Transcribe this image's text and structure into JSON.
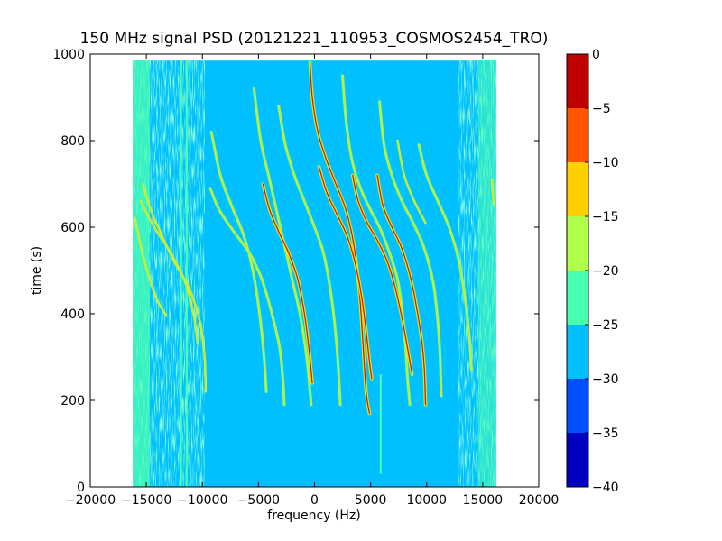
{
  "chart_data": {
    "type": "heatmap",
    "title": "150 MHz signal PSD (20121221_110953_COSMOS2454_TRO)",
    "xlabel": "frequency (Hz)",
    "ylabel": "time (s)",
    "xlim": [
      -20000,
      20000
    ],
    "ylim": [
      0,
      1000
    ],
    "x_ticks": [
      -20000,
      -15000,
      -10000,
      -5000,
      0,
      5000,
      10000,
      15000,
      20000
    ],
    "x_tick_labels": [
      "−20000",
      "−15000",
      "−10000",
      "−5000",
      "0",
      "5000",
      "10000",
      "15000",
      "20000"
    ],
    "y_ticks": [
      0,
      200,
      400,
      600,
      800,
      1000
    ],
    "y_tick_labels": [
      "0",
      "200",
      "400",
      "600",
      "800",
      "1000"
    ],
    "data_extent": {
      "freq_min": -16200,
      "freq_max": 16200,
      "time_min": 0,
      "time_max": 985
    },
    "colorbar": {
      "levels": [
        0,
        -5,
        -10,
        -15,
        -20,
        -25,
        -30,
        -35,
        -40
      ],
      "level_labels": [
        "0",
        "−5",
        "−10",
        "−15",
        "−20",
        "−25",
        "−30",
        "−35",
        "−40"
      ],
      "bands": [
        {
          "from": -5,
          "to": 0,
          "color": "#c00000"
        },
        {
          "from": -10,
          "to": -5,
          "color": "#ff5500"
        },
        {
          "from": -15,
          "to": -10,
          "color": "#ffd000"
        },
        {
          "from": -20,
          "to": -15,
          "color": "#b0ff48"
        },
        {
          "from": -25,
          "to": -20,
          "color": "#48ffb0"
        },
        {
          "from": -30,
          "to": -25,
          "color": "#00c0ff"
        },
        {
          "from": -35,
          "to": -30,
          "color": "#0050ff"
        },
        {
          "from": -40,
          "to": -35,
          "color": "#0000c0"
        }
      ]
    },
    "background_level_color": "#00c0ff",
    "edge_noise_color": "#48ffb0",
    "vertical_lines": [
      {
        "freq": -11900,
        "t0": 0,
        "t1": 985
      },
      {
        "freq": -11400,
        "t0": 0,
        "t1": 985
      },
      {
        "freq": 5900,
        "t0": 30,
        "t1": 260
      }
    ],
    "traces": [
      {
        "id": "t1",
        "strength": "weak",
        "points": [
          [
            -16000,
            620
          ],
          [
            -15400,
            545
          ],
          [
            -14800,
            490
          ],
          [
            -14000,
            430
          ],
          [
            -13200,
            395
          ]
        ]
      },
      {
        "id": "t2",
        "strength": "weak",
        "points": [
          [
            -15300,
            700
          ],
          [
            -14600,
            640
          ],
          [
            -13600,
            580
          ],
          [
            -12500,
            520
          ],
          [
            -11200,
            460
          ],
          [
            -10200,
            380
          ],
          [
            -9800,
            300
          ],
          [
            -9700,
            220
          ]
        ]
      },
      {
        "id": "t3",
        "strength": "weak",
        "points": [
          [
            -15500,
            660
          ],
          [
            -14300,
            600
          ],
          [
            -12800,
            540
          ],
          [
            -11500,
            470
          ],
          [
            -10800,
            400
          ],
          [
            -10400,
            330
          ]
        ]
      },
      {
        "id": "t4",
        "strength": "medium",
        "points": [
          [
            -9200,
            820
          ],
          [
            -8400,
            720
          ],
          [
            -7400,
            650
          ],
          [
            -6300,
            580
          ],
          [
            -5500,
            500
          ],
          [
            -4900,
            400
          ],
          [
            -4500,
            300
          ],
          [
            -4300,
            220
          ]
        ]
      },
      {
        "id": "t5",
        "strength": "medium",
        "points": [
          [
            -9300,
            690
          ],
          [
            -8500,
            640
          ],
          [
            -7200,
            590
          ],
          [
            -5800,
            540
          ],
          [
            -4700,
            480
          ],
          [
            -3800,
            400
          ],
          [
            -3100,
            320
          ],
          [
            -2800,
            240
          ],
          [
            -2700,
            190
          ]
        ]
      },
      {
        "id": "t6",
        "strength": "medium",
        "points": [
          [
            -5400,
            920
          ],
          [
            -4800,
            800
          ],
          [
            -4100,
            720
          ],
          [
            -3400,
            640
          ],
          [
            -2700,
            560
          ],
          [
            -2000,
            480
          ],
          [
            -1300,
            400
          ],
          [
            -700,
            300
          ],
          [
            -300,
            190
          ]
        ]
      },
      {
        "id": "t7",
        "strength": "strong",
        "points": [
          [
            -4600,
            700
          ],
          [
            -4000,
            640
          ],
          [
            -3200,
            590
          ],
          [
            -2300,
            540
          ],
          [
            -1500,
            480
          ],
          [
            -900,
            400
          ],
          [
            -500,
            320
          ],
          [
            -200,
            240
          ]
        ]
      },
      {
        "id": "t8",
        "strength": "medium",
        "points": [
          [
            -3200,
            880
          ],
          [
            -2600,
            790
          ],
          [
            -1800,
            720
          ],
          [
            -900,
            660
          ],
          [
            0,
            600
          ],
          [
            800,
            540
          ],
          [
            1500,
            440
          ],
          [
            2000,
            320
          ],
          [
            2300,
            190
          ]
        ]
      },
      {
        "id": "t9",
        "strength": "strong",
        "points": [
          [
            -400,
            980
          ],
          [
            -200,
            900
          ],
          [
            300,
            820
          ],
          [
            1000,
            760
          ],
          [
            1900,
            700
          ],
          [
            2800,
            640
          ],
          [
            3500,
            560
          ],
          [
            4000,
            450
          ],
          [
            4300,
            340
          ],
          [
            4600,
            220
          ],
          [
            4900,
            170
          ]
        ]
      },
      {
        "id": "t10",
        "strength": "strong",
        "points": [
          [
            400,
            740
          ],
          [
            1100,
            680
          ],
          [
            2000,
            630
          ],
          [
            2900,
            580
          ],
          [
            3600,
            520
          ],
          [
            4200,
            440
          ],
          [
            4600,
            360
          ],
          [
            4900,
            290
          ],
          [
            5100,
            250
          ]
        ]
      },
      {
        "id": "t11",
        "strength": "medium",
        "points": [
          [
            2500,
            950
          ],
          [
            2800,
            850
          ],
          [
            3300,
            760
          ],
          [
            4100,
            690
          ],
          [
            5000,
            640
          ],
          [
            5800,
            600
          ],
          [
            6700,
            540
          ],
          [
            7400,
            480
          ],
          [
            7800,
            410
          ],
          [
            8100,
            330
          ],
          [
            8300,
            250
          ],
          [
            8500,
            190
          ]
        ]
      },
      {
        "id": "t12",
        "strength": "strong",
        "points": [
          [
            3400,
            720
          ],
          [
            3900,
            660
          ],
          [
            4700,
            610
          ],
          [
            5600,
            570
          ],
          [
            6500,
            520
          ],
          [
            7200,
            460
          ],
          [
            7800,
            390
          ],
          [
            8300,
            320
          ],
          [
            8700,
            260
          ]
        ]
      },
      {
        "id": "t13",
        "strength": "medium",
        "points": [
          [
            5800,
            890
          ],
          [
            6200,
            790
          ],
          [
            6900,
            720
          ],
          [
            7800,
            660
          ],
          [
            8800,
            610
          ],
          [
            9800,
            550
          ],
          [
            10600,
            470
          ],
          [
            11000,
            380
          ],
          [
            11200,
            300
          ],
          [
            11300,
            210
          ]
        ]
      },
      {
        "id": "t14",
        "strength": "strong",
        "points": [
          [
            5600,
            720
          ],
          [
            6100,
            650
          ],
          [
            6900,
            600
          ],
          [
            7800,
            550
          ],
          [
            8600,
            480
          ],
          [
            9200,
            400
          ],
          [
            9600,
            330
          ],
          [
            9800,
            270
          ],
          [
            9900,
            190
          ]
        ]
      },
      {
        "id": "t15",
        "strength": "medium",
        "points": [
          [
            9300,
            790
          ],
          [
            10000,
            720
          ],
          [
            11000,
            660
          ],
          [
            12000,
            600
          ],
          [
            12800,
            530
          ],
          [
            13400,
            440
          ],
          [
            13800,
            350
          ],
          [
            14000,
            270
          ]
        ]
      },
      {
        "id": "t16",
        "strength": "weak",
        "points": [
          [
            7400,
            800
          ],
          [
            8000,
            720
          ],
          [
            8900,
            660
          ],
          [
            9900,
            610
          ]
        ]
      },
      {
        "id": "t17",
        "strength": "weak",
        "points": [
          [
            15800,
            710
          ],
          [
            16000,
            650
          ]
        ]
      }
    ]
  }
}
